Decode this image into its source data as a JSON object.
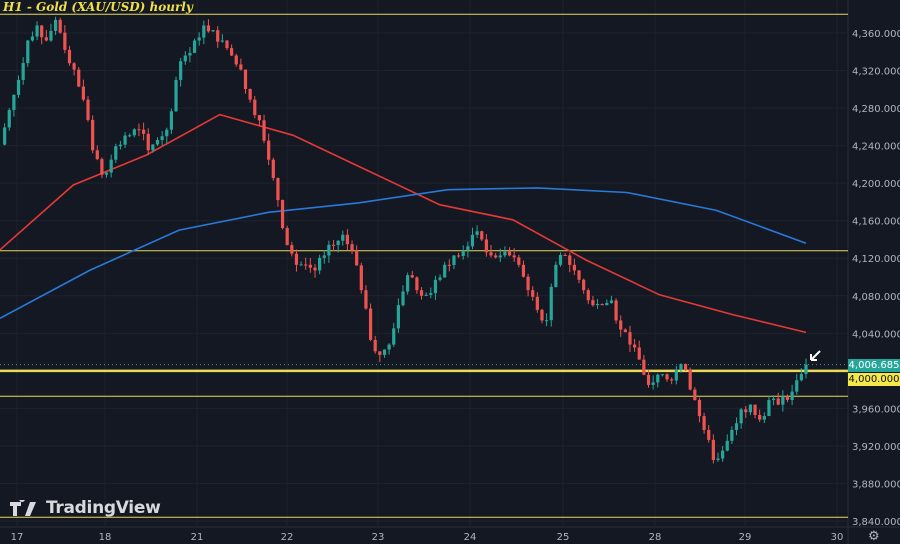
{
  "title": "H1 - Gold (XAU/USD) hourly",
  "brand": "TradingView",
  "settings_icon": "gear-icon",
  "colors": {
    "background": "#141823",
    "up": "#26a69a",
    "down": "#ef5350",
    "ma_red": "#e53935",
    "ma_blue": "#2979d8",
    "level_line": "#e8d95a",
    "current_price_tag": "#26a69a",
    "level_tag": "#f5e94a"
  },
  "chart_data": {
    "type": "candlestick",
    "title": "H1 - Gold (XAU/USD) hourly",
    "x_tick_labels": [
      "17",
      "18",
      "21",
      "22",
      "23",
      "24",
      "25",
      "28",
      "29",
      "30"
    ],
    "y_tick_labels": [
      "4,360.000",
      "4,320.000",
      "4,280.000",
      "4,240.000",
      "4,200.000",
      "4,160.000",
      "4,120.000",
      "4,080.000",
      "4,040.000",
      "4,000.000",
      "3,960.000",
      "3,920.000",
      "3,880.000",
      "3,840.000"
    ],
    "ylim": [
      3830,
      4395
    ],
    "grid": true,
    "closes": [
      4241,
      4278,
      4310,
      4352,
      4368,
      4352,
      4374,
      4342,
      4321,
      4289,
      4235,
      4209,
      4225,
      4241,
      4251,
      4257,
      4235,
      4246,
      4257,
      4310,
      4336,
      4352,
      4368,
      4363,
      4352,
      4336,
      4321,
      4289,
      4267,
      4225,
      4182,
      4134,
      4113,
      4113,
      4107,
      4123,
      4134,
      4145,
      4128,
      4086,
      4033,
      4017,
      4028,
      4070,
      4102,
      4086,
      4081,
      4097,
      4113,
      4123,
      4128,
      4145,
      4140,
      4123,
      4123,
      4123,
      4113,
      4086,
      4065,
      4054,
      4113,
      4123,
      4107,
      4086,
      4070,
      4070,
      4075,
      4044,
      4028,
      4012,
      3985,
      3996,
      3991,
      4001,
      4001,
      3969,
      3937,
      3905,
      3915,
      3937,
      3959,
      3964,
      3948,
      3969,
      3964,
      3969,
      3990,
      4006.685
    ],
    "series": [
      {
        "kind": "moving-average",
        "color": "#e53935",
        "values": [
          4129,
          4198,
          4230,
          4273,
          4251,
          4214,
          4177,
          4161,
          4118,
          4081,
          4060,
          4041
        ]
      },
      {
        "kind": "moving-average",
        "color": "#2979d8",
        "values": [
          4056,
          4107,
          4150,
          4169,
          4179,
          4193,
          4195,
          4190,
          4171,
          4136
        ]
      }
    ],
    "horizontal_levels": [
      4380,
      4128,
      4000,
      3973,
      3844
    ],
    "key_level": 4000,
    "current_price_label": "4,006.685",
    "key_level_label": "4,000.000",
    "annotation": "arrow pointing to latest candle"
  }
}
